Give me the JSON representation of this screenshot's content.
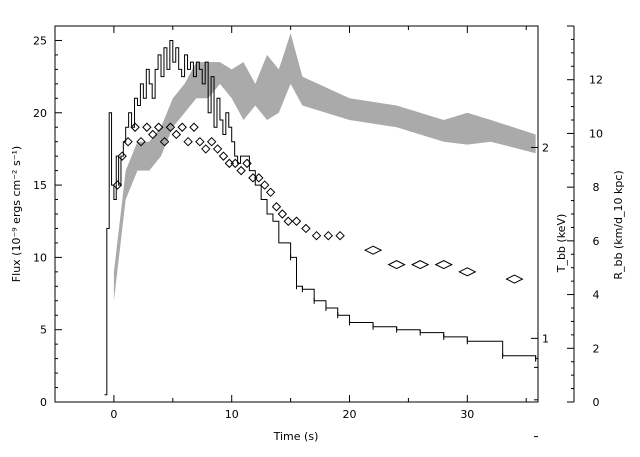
{
  "chart_data": {
    "type": "line",
    "xlabel": "Time (s)",
    "ylabel_left": "Flux (10⁻⁹ ergs cm⁻² s⁻¹)",
    "ylabel_right_inner": "T_bb (keV)",
    "ylabel_right_outer": "R_bb (km/d_10 kpc)",
    "xlim": [
      -5,
      36
    ],
    "ylim_left": [
      0,
      26
    ],
    "x_ticks": [
      "0",
      "10",
      "20",
      "30"
    ],
    "y_ticks_left": [
      "0",
      "5",
      "10",
      "15",
      "20",
      "25"
    ],
    "y_ticks_T": [
      "1",
      "2"
    ],
    "y_ticks_R": [
      "0",
      "2",
      "4",
      "6",
      "8",
      "10",
      "12"
    ],
    "series": [
      {
        "style": "step",
        "x": [
          -0.8,
          -0.6,
          -0.4,
          -0.2,
          0,
          0.2,
          0.4,
          0.6,
          0.8,
          1,
          1.25,
          1.5,
          1.75,
          2,
          2.25,
          2.5,
          2.75,
          3,
          3.25,
          3.5,
          3.75,
          4,
          4.25,
          4.5,
          4.75,
          5,
          5.25,
          5.5,
          5.75,
          6,
          6.25,
          6.5,
          6.75,
          7,
          7.25,
          7.5,
          7.75,
          8,
          8.25,
          8.5,
          8.75,
          9,
          9.25,
          9.5,
          9.75,
          10,
          10.25,
          10.5,
          10.75,
          11,
          11.5,
          12,
          12.5,
          13,
          13.5,
          14,
          14.5,
          15,
          15.5,
          16,
          17,
          18,
          19,
          20,
          22,
          24,
          26,
          28,
          30,
          33,
          35.8
        ],
        "y": [
          0.5,
          12,
          20,
          15,
          14,
          17,
          15,
          17,
          18,
          19,
          20,
          19,
          21,
          20.5,
          22,
          21,
          23,
          22,
          21,
          23,
          24,
          22.5,
          24.5,
          23,
          25,
          23.5,
          24.5,
          23,
          22.5,
          24,
          23,
          23.5,
          22.5,
          23.5,
          23,
          22,
          23.5,
          20,
          22.5,
          19,
          21,
          19.5,
          18.5,
          20,
          19,
          18,
          17,
          16.5,
          17,
          17,
          16,
          15,
          14,
          13,
          12.5,
          11,
          11,
          10,
          8,
          7.8,
          7,
          6.5,
          6,
          5.5,
          5.2,
          5,
          4.8,
          4.5,
          4.2,
          3.2,
          3
        ]
      },
      {
        "style": "band",
        "x": [
          0,
          1,
          2,
          3,
          4,
          5,
          6,
          7,
          8,
          9,
          10,
          11,
          12,
          13,
          14,
          15,
          16,
          20,
          24,
          28,
          30,
          32,
          35.8
        ],
        "y_low": [
          7,
          14,
          16,
          16,
          17,
          19,
          20,
          21,
          21,
          22,
          21,
          19.5,
          20.5,
          19.5,
          20,
          22,
          20.5,
          19.5,
          19,
          18,
          17.8,
          18,
          17.2
        ],
        "y_high": [
          9,
          16,
          18,
          18,
          19,
          21,
          22,
          23.5,
          23.5,
          23.5,
          23,
          23.5,
          22,
          24,
          23,
          25.5,
          22.5,
          21,
          20.5,
          19.5,
          20,
          19.5,
          18.5
        ]
      },
      {
        "style": "diamond",
        "x": [
          0.3,
          0.7,
          1.2,
          1.8,
          2.3,
          2.8,
          3.3,
          3.8,
          4.3,
          4.8,
          5.3,
          5.8,
          6.3,
          6.8,
          7.3,
          7.8,
          8.3,
          8.8,
          9.3,
          9.8,
          10.3,
          10.8,
          11.3,
          11.8,
          12.3,
          12.8,
          13.3,
          13.8,
          14.3,
          14.8,
          15.5,
          16.3,
          17.2,
          18.2,
          19.2,
          22,
          24,
          26,
          28,
          30,
          34
        ],
        "y": [
          15,
          17,
          18,
          19,
          18,
          19,
          18.5,
          19,
          18,
          19,
          18.5,
          19,
          18,
          19,
          18,
          17.5,
          18,
          17.5,
          17,
          16.5,
          16.5,
          16,
          16.5,
          15.5,
          15.5,
          15,
          14.5,
          13.5,
          13,
          12.5,
          12.5,
          12,
          11.5,
          11.5,
          11.5,
          10.5,
          9.5,
          9.5,
          9.5,
          9,
          8.5
        ]
      }
    ]
  }
}
